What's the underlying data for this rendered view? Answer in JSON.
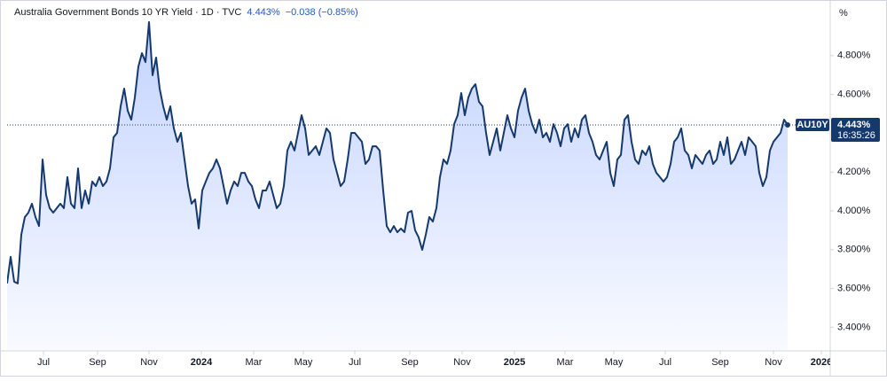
{
  "chart_data": {
    "type": "area",
    "title": "Australia Government Bonds 10 YR Yield · 1D · TVC",
    "change": "−0.038 (−0.85%)",
    "unit": "%",
    "color": "#15396d",
    "values": [
      3.626,
      3.763,
      3.635,
      3.626,
      3.877,
      3.968,
      3.991,
      4.037,
      3.968,
      3.922,
      4.265,
      4.082,
      4.014,
      3.991,
      4.014,
      4.037,
      4.014,
      4.174,
      4.037,
      4.014,
      4.219,
      4.014,
      4.105,
      4.037,
      4.151,
      4.128,
      4.174,
      4.128,
      4.151,
      4.219,
      4.379,
      4.402,
      4.539,
      4.63,
      4.516,
      4.47,
      4.584,
      4.744,
      4.813,
      4.767,
      4.973,
      4.699,
      4.79,
      4.63,
      4.539,
      4.47,
      4.539,
      4.425,
      4.356,
      4.402,
      4.265,
      4.128,
      4.037,
      4.059,
      3.909,
      4.105,
      4.151,
      4.196,
      4.219,
      4.265,
      4.219,
      4.128,
      4.037,
      4.105,
      4.151,
      4.128,
      4.196,
      4.196,
      4.151,
      4.128,
      4.059,
      4.014,
      4.105,
      4.105,
      4.151,
      4.082,
      4.014,
      4.037,
      4.128,
      4.311,
      4.356,
      4.311,
      4.402,
      4.493,
      4.425,
      4.288,
      4.311,
      4.333,
      4.288,
      4.356,
      4.425,
      4.402,
      4.265,
      4.196,
      4.128,
      4.151,
      4.265,
      4.402,
      4.402,
      4.379,
      4.356,
      4.242,
      4.265,
      4.333,
      4.333,
      4.311,
      4.105,
      3.922,
      3.89,
      3.922,
      3.89,
      3.909,
      3.89,
      3.991,
      4.0,
      3.9,
      3.863,
      3.799,
      3.877,
      3.968,
      3.945,
      4.014,
      4.174,
      4.265,
      4.242,
      4.311,
      4.447,
      4.493,
      4.607,
      4.493,
      4.584,
      4.63,
      4.653,
      4.562,
      4.539,
      4.402,
      4.288,
      4.356,
      4.425,
      4.311,
      4.402,
      4.493,
      4.425,
      4.379,
      4.516,
      4.584,
      4.63,
      4.516,
      4.447,
      4.402,
      4.47,
      4.379,
      4.402,
      4.356,
      4.447,
      4.402,
      4.333,
      4.425,
      4.447,
      4.356,
      4.425,
      4.379,
      4.47,
      4.493,
      4.402,
      4.356,
      4.288,
      4.265,
      4.311,
      4.356,
      4.196,
      4.128,
      4.265,
      4.288,
      4.47,
      4.493,
      4.356,
      4.265,
      4.242,
      4.311,
      4.288,
      4.333,
      4.242,
      4.196,
      4.174,
      4.151,
      4.174,
      4.242,
      4.356,
      4.379,
      4.425,
      4.311,
      4.288,
      4.219,
      4.288,
      4.265,
      4.242,
      4.288,
      4.311,
      4.242,
      4.265,
      4.356,
      4.288,
      4.379,
      4.242,
      4.265,
      4.311,
      4.356,
      4.288,
      4.379,
      4.356,
      4.333,
      4.196,
      4.128,
      4.174,
      4.311,
      4.356,
      4.379,
      4.402,
      4.47,
      4.443
    ],
    "xlim": [
      0,
      232
    ],
    "xticks": [
      {
        "value": 10.25,
        "label": "Jul"
      },
      {
        "value": 25.5,
        "label": "Sep"
      },
      {
        "value": 40,
        "label": "Nov"
      },
      {
        "value": 54.75,
        "label": "2024"
      },
      {
        "value": 69.5,
        "label": "Mar"
      },
      {
        "value": 83.5,
        "label": "May"
      },
      {
        "value": 98,
        "label": "Jul"
      },
      {
        "value": 113.5,
        "label": "Sep"
      },
      {
        "value": 128.25,
        "label": "Nov"
      },
      {
        "value": 143,
        "label": "2025"
      },
      {
        "value": 157.25,
        "label": "Mar"
      },
      {
        "value": 171,
        "label": "May"
      },
      {
        "value": 185.5,
        "label": "Jul"
      },
      {
        "value": 201,
        "label": "Sep"
      },
      {
        "value": 216,
        "label": "Nov"
      },
      {
        "value": 229.5,
        "label": "2026"
      }
    ],
    "ylim": [
      3.283,
      5.064
    ],
    "yticks": [
      {
        "value": 3.4,
        "label": "3.400%"
      },
      {
        "value": 3.6,
        "label": "3.600%"
      },
      {
        "value": 3.8,
        "label": "3.800%"
      },
      {
        "value": 4.0,
        "label": "4.000%"
      },
      {
        "value": 4.2,
        "label": "4.200%"
      },
      {
        "value": 4.6,
        "label": "4.600%"
      },
      {
        "value": 4.8,
        "label": "4.800%"
      }
    ],
    "price_label": {
      "symbol": "AU10Y",
      "value": {
        "value": 4.443,
        "label": "4.443%"
      },
      "time": "16:35:26"
    }
  }
}
